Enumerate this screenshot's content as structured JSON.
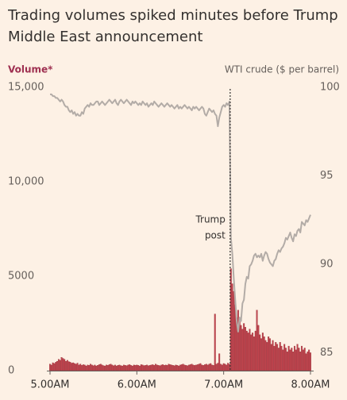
{
  "chart_data": {
    "type": "bar_line",
    "title": "Trading volumes spiked minutes before Trump Middle East announcement",
    "annotation": [
      "Trump",
      "post"
    ],
    "categories": [
      "5.00AM",
      null,
      null,
      null,
      null,
      null,
      null,
      null,
      null,
      null,
      null,
      null,
      null,
      null,
      null,
      null,
      null,
      null,
      null,
      null,
      null,
      null,
      null,
      null,
      null,
      null,
      null,
      null,
      null,
      null,
      null,
      null,
      null,
      null,
      null,
      null,
      null,
      null,
      null,
      null,
      null,
      null,
      null,
      null,
      null,
      null,
      null,
      null,
      null,
      null,
      null,
      null,
      null,
      null,
      null,
      null,
      null,
      null,
      null,
      null,
      "6.00AM",
      null,
      null,
      null,
      null,
      null,
      null,
      null,
      null,
      null,
      null,
      null,
      null,
      null,
      null,
      null,
      null,
      null,
      null,
      null,
      null,
      null,
      null,
      null,
      null,
      null,
      null,
      null,
      null,
      null,
      null,
      null,
      null,
      null,
      null,
      null,
      null,
      null,
      null,
      null,
      null,
      null,
      null,
      null,
      null,
      null,
      null,
      null,
      null,
      null,
      null,
      null,
      null,
      null,
      null,
      null,
      null,
      null,
      null,
      null,
      "7.00AM",
      null,
      null,
      null,
      null,
      null,
      null,
      null,
      null,
      null,
      null,
      null,
      null,
      null,
      null,
      null,
      null,
      null,
      null,
      null,
      null,
      null,
      null,
      null,
      null,
      null,
      null,
      null,
      null,
      null,
      null,
      null,
      null,
      null,
      null,
      null,
      null,
      null,
      null,
      null,
      null,
      null,
      null,
      null,
      null,
      null,
      null,
      null,
      null,
      null,
      null,
      null,
      null,
      null,
      null,
      null,
      null,
      null,
      null,
      null,
      "8.00AM"
    ],
    "series": [
      {
        "name": "Volume*",
        "color": "#c2434d",
        "axis": "y",
        "values": [
          350,
          300,
          420,
          380,
          450,
          500,
          600,
          550,
          700,
          650,
          600,
          500,
          550,
          480,
          450,
          400,
          420,
          380,
          350,
          400,
          300,
          350,
          280,
          320,
          300,
          250,
          300,
          280,
          350,
          300,
          260,
          300,
          250,
          280,
          320,
          350,
          300,
          270,
          250,
          300,
          280,
          320,
          350,
          300,
          260,
          300,
          250,
          280,
          300,
          270,
          250,
          300,
          280,
          260,
          300,
          320,
          280,
          250,
          300,
          280,
          300,
          280,
          250,
          320,
          300,
          270,
          280,
          300,
          260,
          280,
          300,
          320,
          280,
          350,
          300,
          280,
          260,
          300,
          320,
          280,
          300,
          280,
          350,
          320,
          300,
          280,
          260,
          300,
          280,
          250,
          300,
          320,
          350,
          300,
          280,
          260,
          300,
          320,
          350,
          300,
          280,
          300,
          320,
          350,
          380,
          300,
          280,
          320,
          350,
          300,
          350,
          380,
          300,
          280,
          3000,
          350,
          400,
          900,
          350,
          300,
          380,
          350,
          300,
          400,
          350,
          5400,
          4600,
          4200,
          3500,
          2800,
          3200,
          2600,
          2400,
          2200,
          2500,
          2300,
          2100,
          2000,
          2200,
          1900,
          2000,
          1800,
          2100,
          3200,
          2400,
          1900,
          1700,
          2000,
          1800,
          1600,
          1500,
          1800,
          1700,
          1400,
          1600,
          1300,
          1500,
          1400,
          1200,
          1500,
          1300,
          1100,
          1400,
          1200,
          1000,
          1300,
          1100,
          1200,
          1000,
          1300,
          1100,
          1400,
          1200,
          1000,
          1300,
          1100,
          1200,
          900,
          1000,
          1100,
          950
        ]
      },
      {
        "name": "WTI crude ($ per barrel)",
        "color": "#b3aca7",
        "axis": "y2",
        "values": [
          99.6,
          99.6,
          99.5,
          99.5,
          99.4,
          99.4,
          99.3,
          99.2,
          99.3,
          99.2,
          99.0,
          98.9,
          98.9,
          98.7,
          98.6,
          98.7,
          98.5,
          98.6,
          98.4,
          98.5,
          98.4,
          98.4,
          98.6,
          98.5,
          98.8,
          98.9,
          99.0,
          98.9,
          99.1,
          99.0,
          99.0,
          99.1,
          99.2,
          99.2,
          99.0,
          99.1,
          99.2,
          99.1,
          99.0,
          99.1,
          99.2,
          99.3,
          99.2,
          99.1,
          99.2,
          99.3,
          99.1,
          99.0,
          99.2,
          99.3,
          99.2,
          99.1,
          99.2,
          99.3,
          99.2,
          99.1,
          99.0,
          99.2,
          99.1,
          99.2,
          99.1,
          99.0,
          99.1,
          99.0,
          99.2,
          99.1,
          99.0,
          99.1,
          98.9,
          99.0,
          99.1,
          99.0,
          99.2,
          99.1,
          99.0,
          98.9,
          99.0,
          99.1,
          99.0,
          98.9,
          99.0,
          99.1,
          99.0,
          98.9,
          99.0,
          98.9,
          98.8,
          98.9,
          99.0,
          98.8,
          98.9,
          98.8,
          98.9,
          99.0,
          98.9,
          98.8,
          98.9,
          98.8,
          98.7,
          98.9,
          98.8,
          98.9,
          98.8,
          98.7,
          98.8,
          98.9,
          98.8,
          98.5,
          98.4,
          98.6,
          98.8,
          98.7,
          98.6,
          98.7,
          98.5,
          98.4,
          97.8,
          98.3,
          98.6,
          98.9,
          99.0,
          98.9,
          99.1,
          99.0,
          99.2,
          91.5,
          90.6,
          89.2,
          88.0,
          86.8,
          86.2,
          87.0,
          86.8,
          87.8,
          88.0,
          88.9,
          89.3,
          89.2,
          89.9,
          90.0,
          90.2,
          90.5,
          90.6,
          90.4,
          90.5,
          90.4,
          90.6,
          90.2,
          90.5,
          90.7,
          90.6,
          90.3,
          90.1,
          90.0,
          89.9,
          90.2,
          90.3,
          90.6,
          90.8,
          90.7,
          90.9,
          91.0,
          91.2,
          91.5,
          91.4,
          91.6,
          91.8,
          91.5,
          91.3,
          91.7,
          91.6,
          91.9,
          92.0,
          91.8,
          92.4,
          92.3,
          92.2,
          92.5,
          92.4,
          92.6,
          92.8
        ]
      }
    ],
    "ylim": [
      0,
      15000
    ],
    "yticks": [
      0,
      5000,
      {
        "value": 10000,
        "label": "10,000"
      },
      {
        "value": 15000,
        "label": "15,000"
      }
    ],
    "y2lim": [
      84,
      100
    ],
    "y2ticks": [
      85,
      90,
      95,
      100
    ],
    "grid": false
  }
}
